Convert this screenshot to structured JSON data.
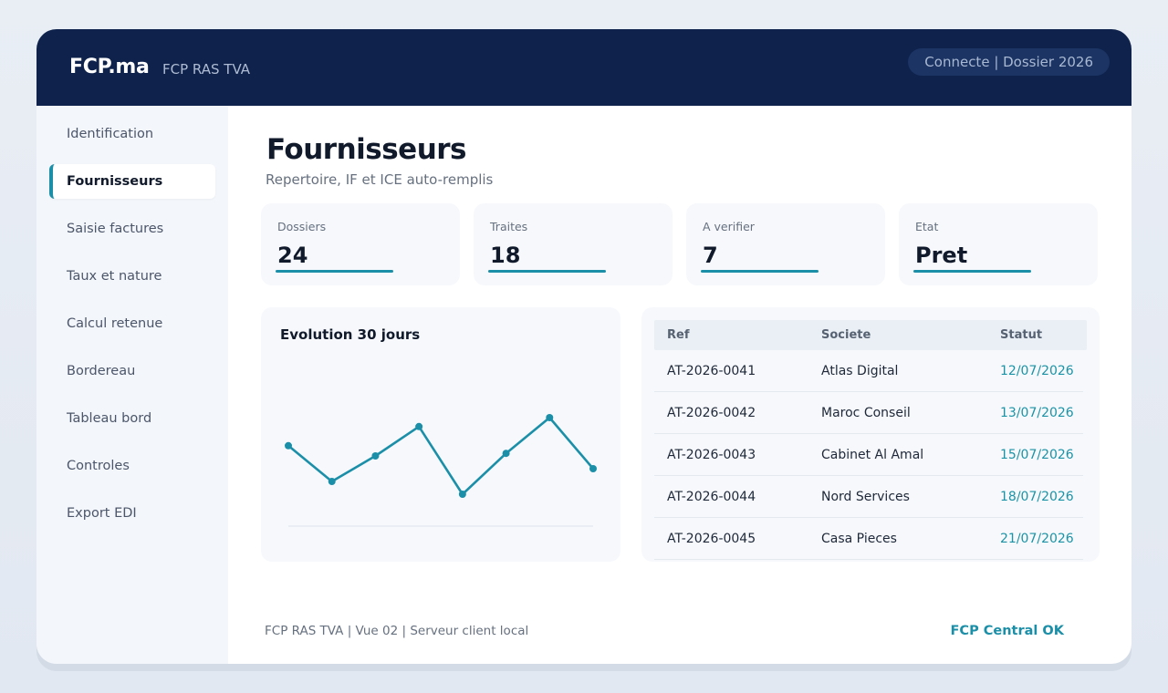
{
  "header": {
    "brand": "FCP.ma",
    "subtitle": "FCP RAS TVA",
    "status": "Connecte | Dossier 2026"
  },
  "sidebar": {
    "active_index": 1,
    "items": [
      {
        "label": "Identification"
      },
      {
        "label": "Fournisseurs"
      },
      {
        "label": "Saisie factures"
      },
      {
        "label": "Taux et nature"
      },
      {
        "label": "Calcul retenue"
      },
      {
        "label": "Bordereau"
      },
      {
        "label": "Tableau bord"
      },
      {
        "label": "Controles"
      },
      {
        "label": "Export EDI"
      }
    ]
  },
  "page": {
    "title": "Fournisseurs",
    "subtitle": "Repertoire, IF et ICE auto-remplis"
  },
  "stats": [
    {
      "label": "Dossiers",
      "value": "24"
    },
    {
      "label": "Traites",
      "value": "18"
    },
    {
      "label": "A verifier",
      "value": "7"
    },
    {
      "label": "Etat",
      "value": "Pret"
    }
  ],
  "chart_data": {
    "type": "line",
    "title": "Evolution 30 jours",
    "x": [
      1,
      2,
      3,
      4,
      5,
      6,
      7,
      8
    ],
    "series": [
      {
        "values": [
          63,
          35,
          55,
          78,
          25,
          57,
          85,
          45
        ]
      }
    ],
    "ylim": [
      0,
      100
    ],
    "grid": false,
    "color": "#1b8fa8"
  },
  "table": {
    "headers": [
      "Ref",
      "Societe",
      "Statut"
    ],
    "rows": [
      {
        "ref": "AT-2026-0041",
        "societe": "Atlas Digital",
        "statut": "12/07/2026"
      },
      {
        "ref": "AT-2026-0042",
        "societe": "Maroc Conseil",
        "statut": "13/07/2026"
      },
      {
        "ref": "AT-2026-0043",
        "societe": "Cabinet Al Amal",
        "statut": "15/07/2026"
      },
      {
        "ref": "AT-2026-0044",
        "societe": "Nord Services",
        "statut": "18/07/2026"
      },
      {
        "ref": "AT-2026-0045",
        "societe": "Casa Pieces",
        "statut": "21/07/2026"
      }
    ]
  },
  "footer": {
    "left": "FCP RAS TVA | Vue 02 | Serveur client local",
    "right": "FCP Central OK"
  },
  "colors": {
    "header_bg": "#0e224b",
    "accent": "#1b8fa8",
    "panel_bg": "#f6f8fc"
  }
}
